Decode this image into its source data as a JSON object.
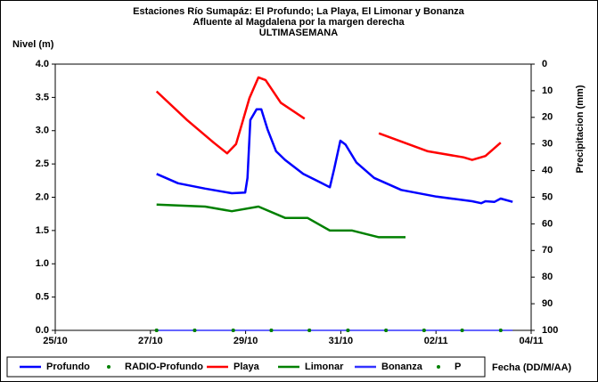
{
  "chart_data": {
    "type": "line",
    "title": [
      "Estaciones Río Sumapáz: El Profundo; La Playa, El Limonar y Bonanza",
      "Afluente al Magdalena por la margen derecha",
      "ULTIMASEMANA"
    ],
    "y_label": "Nivel (m)",
    "y2_label": "Precipitacion (mm)",
    "x_label": "Fecha (DD/M/AA)",
    "xlim": [
      0,
      10
    ],
    "xticks": [
      {
        "value": 0,
        "label": "25/10"
      },
      {
        "value": 2,
        "label": "27/10"
      },
      {
        "value": 4,
        "label": "29/10"
      },
      {
        "value": 6,
        "label": "31/10"
      },
      {
        "value": 8,
        "label": "02/11"
      },
      {
        "value": 10,
        "label": "04/11"
      }
    ],
    "ylim": [
      0,
      4
    ],
    "yticks": [
      {
        "value": 0,
        "label": "0.0"
      },
      0.5,
      {
        "value": 1,
        "label": "1.0"
      },
      1.5,
      {
        "value": 2,
        "label": "2.0"
      },
      2.5,
      {
        "value": 3,
        "label": "3.0"
      },
      3.5,
      {
        "value": 4,
        "label": "4.0"
      }
    ],
    "y2lim": [
      100,
      0
    ],
    "y2ticks": [
      0,
      10,
      20,
      30,
      40,
      50,
      60,
      70,
      80,
      90,
      100
    ],
    "series": [
      {
        "name": "Profundo",
        "color": "#0000ff",
        "style": "line",
        "x": [
          2.13,
          2.58,
          3.15,
          3.71,
          3.99,
          4.04,
          4.1,
          4.23,
          4.33,
          4.46,
          4.64,
          4.83,
          5.21,
          5.58,
          5.77,
          5.86,
          5.99,
          6.1,
          6.33,
          6.7,
          7.27,
          8.01,
          8.76,
          8.95,
          9.04,
          9.23,
          9.36,
          9.61
        ],
        "values": [
          2.35,
          2.21,
          2.13,
          2.06,
          2.07,
          2.29,
          3.16,
          3.32,
          3.32,
          3.02,
          2.69,
          2.56,
          2.35,
          2.22,
          2.15,
          2.42,
          2.85,
          2.79,
          2.52,
          2.29,
          2.11,
          2.01,
          1.94,
          1.91,
          1.94,
          1.93,
          1.98,
          1.93
        ]
      },
      {
        "name": "RADIO-Profundo",
        "color": "#008000",
        "style": "dots",
        "x": [
          2.13,
          2.93,
          3.74,
          4.54,
          5.34,
          6.15,
          6.95,
          7.75,
          8.55,
          9.36
        ],
        "values": [
          0,
          0,
          0,
          0,
          0,
          0,
          0,
          0,
          0,
          0
        ]
      },
      {
        "name": "Playa",
        "color": "#ff0000",
        "style": "line",
        "x": [
          2.13,
          2.77,
          3.33,
          3.61,
          3.8,
          4.08,
          4.27,
          4.42,
          4.74,
          5.24,
          null,
          6.8,
          7.83,
          8.58,
          8.76,
          9.04,
          9.36
        ],
        "values": [
          3.59,
          3.16,
          2.82,
          2.66,
          2.8,
          3.49,
          3.8,
          3.76,
          3.42,
          3.18,
          null,
          2.96,
          2.69,
          2.6,
          2.56,
          2.62,
          2.82
        ]
      },
      {
        "name": "Limonar",
        "color": "#008000",
        "style": "line",
        "x": [
          2.13,
          3.15,
          3.71,
          4.27,
          4.83,
          5.3,
          5.77,
          6.24,
          6.8,
          7.36
        ],
        "values": [
          1.89,
          1.86,
          1.79,
          1.86,
          1.69,
          1.69,
          1.5,
          1.5,
          1.4,
          1.4
        ]
      },
      {
        "name": "Bonanza",
        "color": "#3333ff",
        "style": "line",
        "x": [
          2.13,
          9.61
        ],
        "values": [
          0,
          0
        ]
      },
      {
        "name": "P",
        "color": "#008000",
        "style": "dots",
        "axis": "y2",
        "x": [
          2.13,
          2.93,
          3.74,
          4.54,
          5.34,
          6.15,
          6.95,
          7.75,
          8.55,
          9.36
        ],
        "values": [
          100,
          100,
          100,
          100,
          100,
          100,
          100,
          100,
          100,
          100
        ]
      }
    ]
  }
}
